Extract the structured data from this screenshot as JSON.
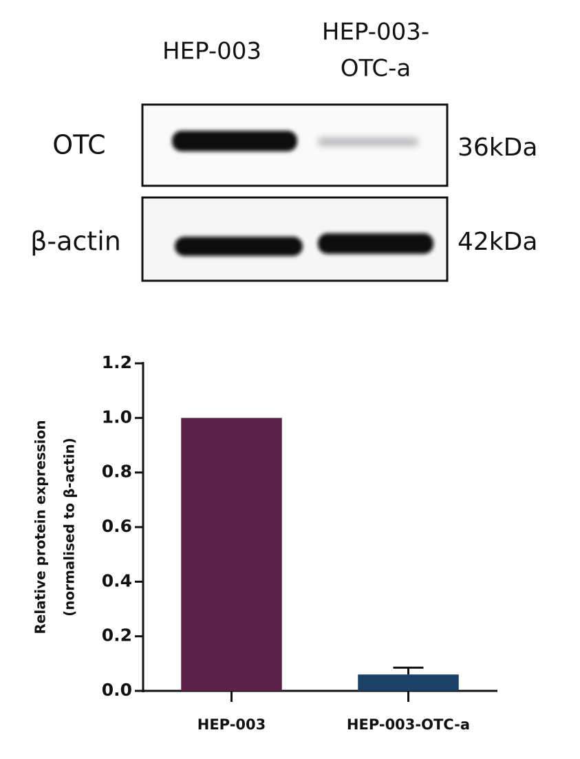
{
  "blot": {
    "lanes": [
      [
        "HEP-003"
      ],
      [
        "HEP-003-",
        "OTC-a"
      ]
    ],
    "rows": [
      {
        "label": "OTC",
        "size": "36kDa"
      },
      {
        "label": "β-actin",
        "size": "42kDa"
      }
    ]
  },
  "chart_data": {
    "type": "bar",
    "y_label": [
      "Relative protein expression",
      "(normalised to β-actin)"
    ],
    "categories": [
      "HEP-003",
      "HEP-003-OTC-a"
    ],
    "values": [
      1.0,
      0.06
    ],
    "errors": [
      null,
      0.025
    ],
    "colors": [
      "#5c2149",
      "#1b4166"
    ],
    "ylim": [
      0,
      1.2
    ],
    "yticks": [
      {
        "value": 0,
        "label": "0.0"
      },
      0.2,
      0.4,
      0.6,
      0.8,
      {
        "value": 1,
        "label": "1.0"
      },
      1.2
    ],
    "grid": false
  }
}
